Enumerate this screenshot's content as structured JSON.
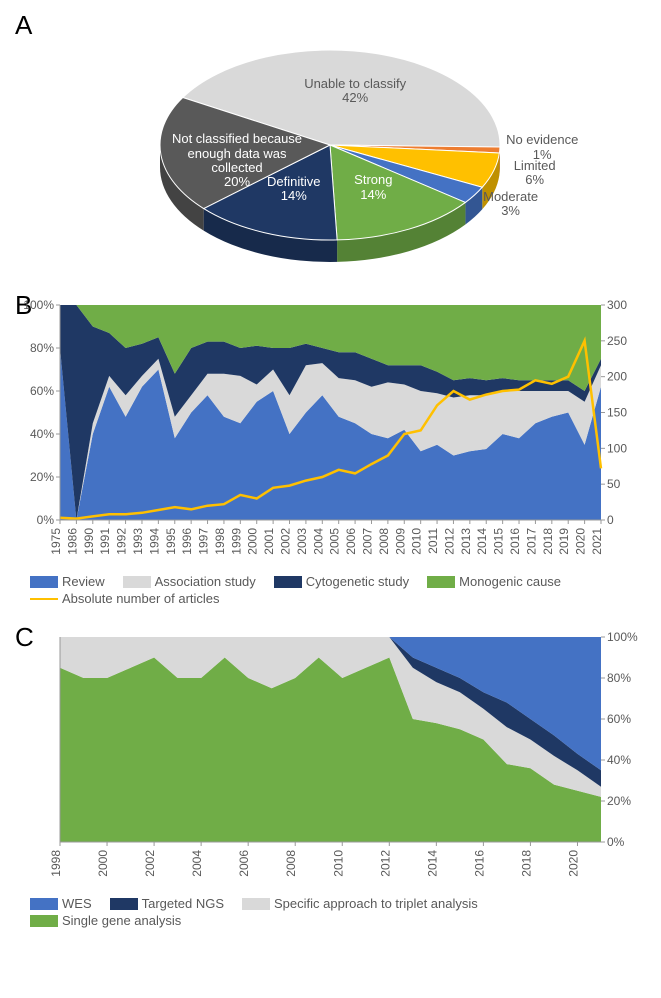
{
  "panelA": {
    "label": "A",
    "type": "pie-3d",
    "slices": [
      {
        "label": "Unable to classify",
        "pct": 42,
        "color": "#d9d9d9",
        "textColor": "#595959"
      },
      {
        "label": "No evidence",
        "pct": 1,
        "color": "#ed7d31",
        "textColor": "#595959"
      },
      {
        "label": "Limited",
        "pct": 6,
        "color": "#ffc000",
        "textColor": "#595959"
      },
      {
        "label": "Moderate",
        "pct": 3,
        "color": "#4472c4",
        "textColor": "#595959"
      },
      {
        "label": "Strong",
        "pct": 14,
        "color": "#70ad47",
        "textColor": "#ffffff"
      },
      {
        "label": "Definitive",
        "pct": 14,
        "color": "#1f3864",
        "textColor": "#ffffff"
      },
      {
        "label": "Not classified because\nenough data was collected",
        "pct": 20,
        "color": "#595959",
        "textColor": "#ffffff"
      }
    ]
  },
  "panelB": {
    "label": "B",
    "type": "stacked-area-with-line",
    "years": [
      1975,
      1986,
      1990,
      1991,
      1992,
      1993,
      1994,
      1995,
      1996,
      1997,
      1998,
      1999,
      2000,
      2001,
      2002,
      2003,
      2004,
      2005,
      2006,
      2007,
      2008,
      2009,
      2010,
      2011,
      2012,
      2013,
      2014,
      2015,
      2016,
      2017,
      2018,
      2019,
      2020,
      2021
    ],
    "series": {
      "review": [
        80,
        0,
        40,
        62,
        48,
        62,
        70,
        38,
        50,
        58,
        48,
        45,
        55,
        60,
        40,
        50,
        58,
        48,
        45,
        40,
        38,
        42,
        32,
        35,
        30,
        32,
        33,
        40,
        38,
        45,
        48,
        50,
        35,
        62
      ],
      "association": [
        0,
        0,
        5,
        5,
        10,
        5,
        5,
        10,
        8,
        10,
        20,
        22,
        8,
        10,
        18,
        22,
        15,
        18,
        20,
        22,
        26,
        21,
        28,
        24,
        27,
        26,
        25,
        20,
        22,
        15,
        12,
        10,
        20,
        10
      ],
      "cytogenetic": [
        20,
        100,
        45,
        20,
        22,
        15,
        10,
        20,
        22,
        15,
        15,
        13,
        18,
        10,
        22,
        10,
        7,
        12,
        13,
        13,
        8,
        9,
        12,
        10,
        8,
        8,
        7,
        6,
        5,
        5,
        5,
        5,
        5,
        3
      ],
      "monogenic": [
        0,
        0,
        10,
        13,
        20,
        18,
        15,
        32,
        20,
        17,
        17,
        20,
        19,
        20,
        20,
        18,
        20,
        22,
        22,
        25,
        28,
        28,
        28,
        31,
        35,
        34,
        35,
        34,
        35,
        35,
        35,
        35,
        40,
        25
      ]
    },
    "line_absolute": [
      3,
      2,
      5,
      8,
      8,
      10,
      14,
      18,
      15,
      20,
      22,
      35,
      30,
      45,
      48,
      55,
      60,
      70,
      65,
      78,
      90,
      120,
      125,
      160,
      180,
      168,
      175,
      180,
      182,
      195,
      190,
      200,
      250,
      72
    ],
    "colors": {
      "review": "#4472c4",
      "association": "#d9d9d9",
      "cytogenetic": "#1f3864",
      "monogenic": "#70ad47",
      "line": "#ffc000"
    },
    "legend": [
      {
        "label": "Review",
        "color": "#4472c4",
        "type": "box"
      },
      {
        "label": "Association study",
        "color": "#d9d9d9",
        "type": "box"
      },
      {
        "label": "Cytogenetic study",
        "color": "#1f3864",
        "type": "box"
      },
      {
        "label": "Monogenic cause",
        "color": "#70ad47",
        "type": "box"
      },
      {
        "label": "Absolute number of articles",
        "color": "#ffc000",
        "type": "line"
      }
    ],
    "yleft": {
      "min": 0,
      "max": 100,
      "step": 20,
      "suffix": "%"
    },
    "yright": {
      "min": 0,
      "max": 300,
      "step": 50
    }
  },
  "panelC": {
    "label": "C",
    "type": "stacked-area",
    "years": [
      1998,
      1999,
      2000,
      2001,
      2002,
      2003,
      2004,
      2005,
      2006,
      2007,
      2008,
      2009,
      2010,
      2011,
      2012,
      2013,
      2014,
      2015,
      2016,
      2017,
      2018,
      2019,
      2020,
      2021
    ],
    "series": {
      "single_gene": [
        85,
        80,
        80,
        85,
        90,
        80,
        80,
        90,
        80,
        75,
        80,
        90,
        80,
        85,
        90,
        60,
        58,
        55,
        50,
        38,
        36,
        28,
        25,
        22
      ],
      "triplet": [
        15,
        20,
        20,
        15,
        10,
        20,
        20,
        10,
        20,
        25,
        20,
        10,
        20,
        15,
        10,
        25,
        20,
        18,
        15,
        18,
        14,
        14,
        10,
        5
      ],
      "targeted": [
        0,
        0,
        0,
        0,
        0,
        0,
        0,
        0,
        0,
        0,
        0,
        0,
        0,
        0,
        0,
        5,
        7,
        7,
        8,
        12,
        10,
        10,
        8,
        8
      ],
      "wes": [
        0,
        0,
        0,
        0,
        0,
        0,
        0,
        0,
        0,
        0,
        0,
        0,
        0,
        0,
        0,
        10,
        15,
        20,
        27,
        32,
        40,
        48,
        57,
        65
      ]
    },
    "colors": {
      "wes": "#4472c4",
      "targeted": "#1f3864",
      "triplet": "#d9d9d9",
      "single_gene": "#70ad47"
    },
    "legend": [
      {
        "label": "WES",
        "color": "#4472c4",
        "type": "box"
      },
      {
        "label": "Targeted NGS",
        "color": "#1f3864",
        "type": "box"
      },
      {
        "label": "Specific approach to triplet analysis",
        "color": "#d9d9d9",
        "type": "box"
      },
      {
        "label": "Single gene analysis",
        "color": "#70ad47",
        "type": "box"
      }
    ],
    "yright": {
      "min": 0,
      "max": 100,
      "step": 20,
      "suffix": "%"
    }
  }
}
